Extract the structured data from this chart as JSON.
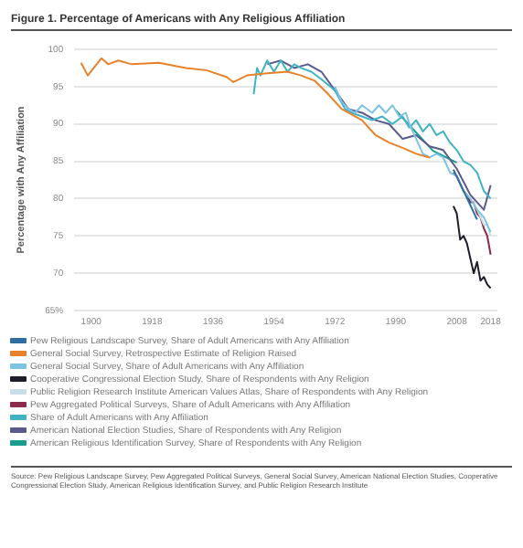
{
  "chart_data": {
    "type": "line",
    "title": "Figure 1. Percentage of Americans with Any Religious Affiliation",
    "ylabel": "Percentage with Any Affiliation",
    "xlim": [
      1895,
      2020
    ],
    "xticks": [
      1900,
      1918,
      1936,
      1954,
      1972,
      1990,
      2008,
      2018
    ],
    "ylim": [
      65,
      100
    ],
    "yticks": [
      {
        "value": 65,
        "label": "65%"
      },
      70,
      75,
      80,
      85,
      90,
      95,
      100
    ],
    "grid": "y",
    "legend": "bottom",
    "marker": "none",
    "series": [
      {
        "name": "Pew Religious Landscape Survey, Share of Adult Americans with Any Affiliation",
        "color": "#2f6f9f",
        "x": [
          2007,
          2014
        ],
        "values": [
          83.9,
          77.2
        ]
      },
      {
        "name": "General Social Survey, Retrospective Estimate of Religion Raised",
        "color": "#e8822a",
        "x": [
          1897,
          1899,
          1903,
          1905,
          1908,
          1912,
          1920,
          1928,
          1934,
          1940,
          1942,
          1946,
          1952,
          1958,
          1962,
          1966,
          1970,
          1974,
          1976,
          1980,
          1984,
          1988,
          1992,
          1996,
          2000
        ],
        "values": [
          98.2,
          96.5,
          98.8,
          98,
          98.5,
          98,
          98.2,
          97.5,
          97.2,
          96.3,
          95.6,
          96.5,
          96.8,
          97,
          96.5,
          95.8,
          94,
          92,
          91.5,
          90.5,
          88.5,
          87.5,
          86.8,
          86,
          85.5
        ]
      },
      {
        "name": "General Social Survey, Share of Adult Americans with Any Affiliation",
        "color": "#7cc3e6",
        "x": [
          1972,
          1974,
          1976,
          1978,
          1980,
          1983,
          1985,
          1987,
          1989,
          1991,
          1993,
          1994,
          1996,
          1998,
          2000,
          2002,
          2004,
          2006,
          2008,
          2010,
          2012,
          2014,
          2016,
          2018
        ],
        "values": [
          95,
          93,
          92,
          91.5,
          92.5,
          91.5,
          92.5,
          91.5,
          92.5,
          91,
          91.5,
          90,
          88,
          86,
          85.5,
          86,
          85.5,
          83.5,
          83,
          81,
          80,
          78.5,
          77.5,
          75.5
        ]
      },
      {
        "name": "Cooperative Congressional Election Study, Share of Respondents with Any Religion",
        "color": "#1e1e2a",
        "x": [
          2007,
          2008,
          2009,
          2010,
          2011,
          2012,
          2013,
          2014,
          2015,
          2016,
          2017,
          2018
        ],
        "values": [
          79,
          78,
          74.5,
          75,
          74,
          72,
          70,
          71.5,
          69,
          69.5,
          68.5,
          68
        ]
      },
      {
        "name": "Public Religion Research Institute American Values Atlas, Share of Respondents with Any Religion",
        "color": "#c9dde9",
        "x": [
          2013,
          2014,
          2015,
          2016,
          2017,
          2018
        ],
        "values": [
          79.5,
          78.5,
          77.5,
          76.5,
          76.5,
          75
        ]
      },
      {
        "name": "Pew Aggregated Political Surveys, Share of Adult Americans with Any Affiliation",
        "color": "#8b2a4a",
        "x": [
          2007,
          2008,
          2009,
          2010,
          2011,
          2012,
          2013,
          2014,
          2015,
          2016,
          2017,
          2018
        ],
        "values": [
          83.5,
          83,
          82,
          81,
          80.5,
          79.5,
          79.5,
          78,
          77.5,
          76,
          75,
          72.5
        ]
      },
      {
        "name": "Share of Adult Americans with Any Affiliation",
        "color": "#3fb3c4",
        "x": [
          1948,
          1949,
          1950,
          1952,
          1954,
          1956,
          1958,
          1960,
          1962,
          1965,
          1968,
          1972,
          1975,
          1977,
          1980,
          1983,
          1986,
          1989,
          1992,
          1994,
          1996,
          1998,
          2000,
          2002,
          2004,
          2006,
          2008,
          2010,
          2012,
          2014,
          2016,
          2018
        ],
        "values": [
          94,
          97.5,
          96.5,
          98.5,
          97,
          98.5,
          97,
          98,
          97.5,
          97,
          96,
          94.5,
          92,
          91.5,
          91,
          90.5,
          91,
          90,
          91,
          89.5,
          90.5,
          89,
          90,
          88.5,
          89,
          87.5,
          86.5,
          85,
          84.5,
          83.5,
          81,
          80
        ]
      },
      {
        "name": "American National Election Studies, Share of Respondents with Any Religion",
        "color": "#5a5a8c",
        "x": [
          1952,
          1956,
          1960,
          1964,
          1968,
          1972,
          1976,
          1980,
          1984,
          1988,
          1992,
          1996,
          2000,
          2004,
          2008,
          2012,
          2016,
          2018
        ],
        "values": [
          98,
          98.5,
          97.5,
          98,
          97,
          94.5,
          92,
          91.5,
          90.5,
          90,
          88,
          88.5,
          87,
          86.5,
          84,
          80.5,
          78.5,
          81.8
        ]
      },
      {
        "name": "American Religious Identification Survey, Share of Respondents with Any Religion",
        "color": "#1a9e8f",
        "x": [
          1990,
          2001,
          2008
        ],
        "values": [
          91.8,
          86.4,
          84.8
        ]
      }
    ],
    "annotations": [
      "Source: Pew Religious Landscape Survey, Pew Aggregated Political Surveys, General Social Survey, American National Election Studies, Cooperative Congressional Election Study, American Religious Identification Survey, and Public Religion Research Institute"
    ]
  }
}
